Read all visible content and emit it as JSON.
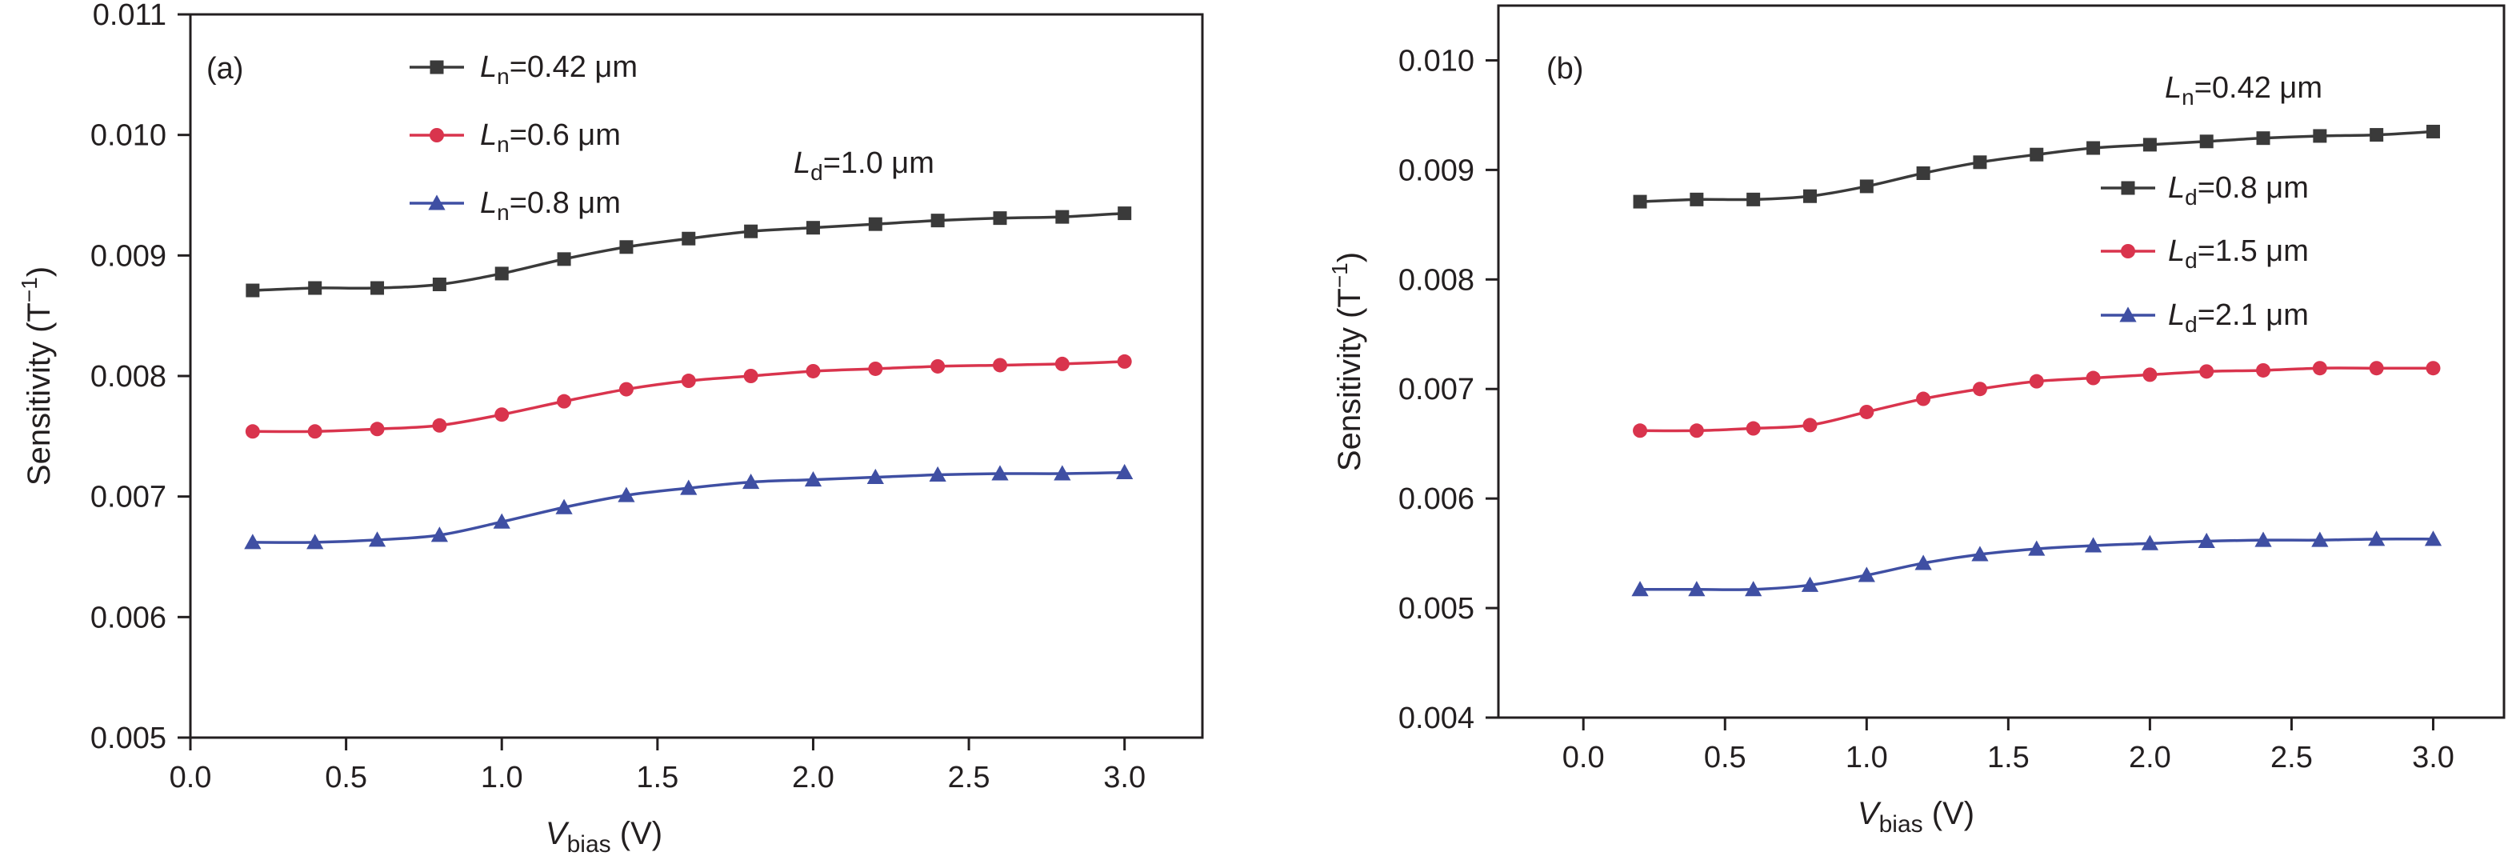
{
  "colors": {
    "black_series": "#3a3a3a",
    "red_series": "#d9344d",
    "blue_series": "#3f4fa3",
    "axis": "#231f20"
  },
  "chart_data": [
    {
      "type": "line",
      "panel_label": "(a)",
      "xlabel_main": "V",
      "xlabel_sub": "bias",
      "xlabel_unit": " (V)",
      "ylabel_main": "Sensitivity (T",
      "ylabel_sup": "−1",
      "ylabel_end": ")",
      "xlim": [
        0.0,
        3.25
      ],
      "ylim": [
        0.005,
        0.011
      ],
      "xticks": [
        0.0,
        0.5,
        1.0,
        1.5,
        2.0,
        2.5,
        3.0
      ],
      "xtick_labels": [
        "0.0",
        "0.5",
        "1.0",
        "1.5",
        "2.0",
        "2.5",
        "3.0"
      ],
      "yticks": [
        0.005,
        0.006,
        0.007,
        0.008,
        0.009,
        0.01,
        0.011
      ],
      "ytick_labels": [
        "0.005",
        "0.006",
        "0.007",
        "0.008",
        "0.009",
        "0.010",
        "0.011"
      ],
      "annotation": {
        "main": "L",
        "sub": "d",
        "rest": "=1.0 μm"
      },
      "legend": {
        "placement": "top-left"
      },
      "x": [
        0.2,
        0.4,
        0.6,
        0.8,
        1.0,
        1.2,
        1.4,
        1.6,
        1.8,
        2.0,
        2.2,
        2.4,
        2.6,
        2.8,
        3.0
      ],
      "series": [
        {
          "name_main": "L",
          "name_sub": "n",
          "name_rest": "=0.42 μm",
          "marker": "square",
          "color": "#3a3a3a",
          "values": [
            0.00871,
            0.00873,
            0.00873,
            0.00876,
            0.00885,
            0.00897,
            0.00907,
            0.00914,
            0.0092,
            0.00923,
            0.00926,
            0.00929,
            0.00931,
            0.00932,
            0.00935
          ]
        },
        {
          "name_main": "L",
          "name_sub": "n",
          "name_rest": "=0.6 μm",
          "marker": "circle",
          "color": "#d9344d",
          "values": [
            0.00754,
            0.00754,
            0.00756,
            0.00759,
            0.00768,
            0.00779,
            0.00789,
            0.00796,
            0.008,
            0.00804,
            0.00806,
            0.00808,
            0.00809,
            0.0081,
            0.00812
          ]
        },
        {
          "name_main": "L",
          "name_sub": "n",
          "name_rest": "=0.8 μm",
          "marker": "triangle",
          "color": "#3f4fa3",
          "values": [
            0.00662,
            0.00662,
            0.00664,
            0.00668,
            0.00679,
            0.00691,
            0.00701,
            0.00707,
            0.00712,
            0.00714,
            0.00716,
            0.00718,
            0.00719,
            0.00719,
            0.0072
          ]
        }
      ]
    },
    {
      "type": "line",
      "panel_label": "(b)",
      "xlabel_main": "V",
      "xlabel_sub": "bias",
      "xlabel_unit": " (V)",
      "ylabel_main": "Sensitivity (T",
      "ylabel_sup": "−1",
      "ylabel_end": ")",
      "xlim": [
        -0.3,
        3.25
      ],
      "ylim": [
        0.004,
        0.0105
      ],
      "xticks": [
        0.0,
        0.5,
        1.0,
        1.5,
        2.0,
        2.5,
        3.0
      ],
      "xtick_labels": [
        "0.0",
        "0.5",
        "1.0",
        "1.5",
        "2.0",
        "2.5",
        "3.0"
      ],
      "yticks": [
        0.004,
        0.005,
        0.006,
        0.007,
        0.008,
        0.009,
        0.01
      ],
      "ytick_labels": [
        "0.004",
        "0.005",
        "0.006",
        "0.007",
        "0.008",
        "0.009",
        "0.010"
      ],
      "annotation": {
        "main": "L",
        "sub": "n",
        "rest": "=0.42 μm"
      },
      "legend": {
        "placement": "right"
      },
      "x": [
        0.2,
        0.4,
        0.6,
        0.8,
        1.0,
        1.2,
        1.4,
        1.6,
        1.8,
        2.0,
        2.2,
        2.4,
        2.6,
        2.8,
        3.0
      ],
      "series": [
        {
          "name_main": "L",
          "name_sub": "d",
          "name_rest": "=0.8 μm",
          "marker": "square",
          "color": "#3a3a3a",
          "values": [
            0.00871,
            0.00873,
            0.00873,
            0.00876,
            0.00885,
            0.00897,
            0.00907,
            0.00914,
            0.0092,
            0.00923,
            0.00926,
            0.00929,
            0.00931,
            0.00932,
            0.00935
          ]
        },
        {
          "name_main": "L",
          "name_sub": "d",
          "name_rest": "=1.5 μm",
          "marker": "circle",
          "color": "#d9344d",
          "values": [
            0.00662,
            0.00662,
            0.00664,
            0.00667,
            0.00679,
            0.00691,
            0.007,
            0.00707,
            0.0071,
            0.00713,
            0.00716,
            0.00717,
            0.00719,
            0.00719,
            0.00719
          ]
        },
        {
          "name_main": "L",
          "name_sub": "d",
          "name_rest": "=2.1 μm",
          "marker": "triangle",
          "color": "#3f4fa3",
          "values": [
            0.00517,
            0.00517,
            0.00517,
            0.00521,
            0.0053,
            0.00541,
            0.00549,
            0.00554,
            0.00557,
            0.00559,
            0.00561,
            0.00562,
            0.00562,
            0.00563,
            0.00563
          ]
        }
      ]
    }
  ]
}
